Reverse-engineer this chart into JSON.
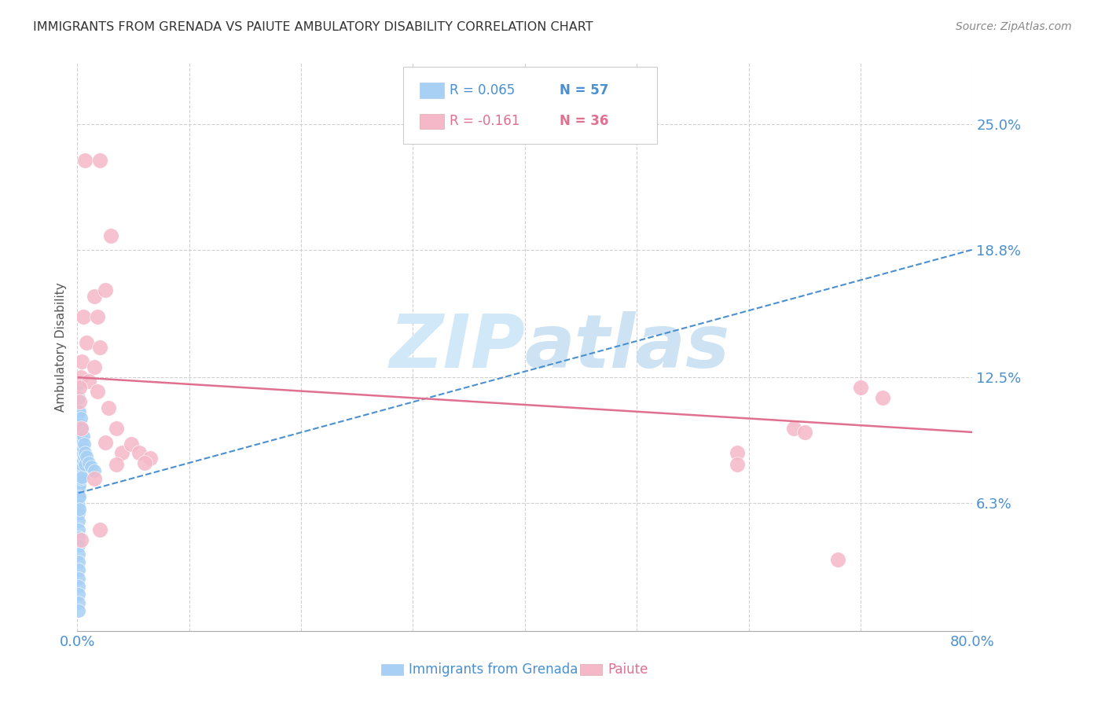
{
  "title": "IMMIGRANTS FROM GRENADA VS PAIUTE AMBULATORY DISABILITY CORRELATION CHART",
  "source": "Source: ZipAtlas.com",
  "xlabel_bottom": [
    "Immigrants from Grenada",
    "Paiute"
  ],
  "ylabel": "Ambulatory Disability",
  "xmin": 0.0,
  "xmax": 0.8,
  "ymin": 0.0,
  "ymax": 0.28,
  "yticks": [
    0.0,
    0.063,
    0.125,
    0.188,
    0.25
  ],
  "ytick_labels": [
    "",
    "6.3%",
    "12.5%",
    "18.8%",
    "25.0%"
  ],
  "xticks": [
    0.0,
    0.1,
    0.2,
    0.3,
    0.4,
    0.5,
    0.6,
    0.7,
    0.8
  ],
  "xtick_labels": [
    "0.0%",
    "",
    "",
    "",
    "",
    "",
    "",
    "",
    "80.0%"
  ],
  "legend_r1": "R = 0.065",
  "legend_n1": "N = 57",
  "legend_r2": "R = -0.161",
  "legend_n2": "N = 36",
  "blue_color": "#a8d0f5",
  "pink_color": "#f5b8c8",
  "trendline_blue_color": "#4a90d0",
  "trendline_pink_color": "#e07090",
  "grid_color": "#d0d0d0",
  "title_color": "#333333",
  "axis_label_color": "#4a90d0",
  "watermark_color": "#d0e8f8",
  "blue_scatter": [
    [
      0.001,
      0.122
    ],
    [
      0.001,
      0.115
    ],
    [
      0.001,
      0.108
    ],
    [
      0.001,
      0.1
    ],
    [
      0.001,
      0.095
    ],
    [
      0.001,
      0.09
    ],
    [
      0.001,
      0.086
    ],
    [
      0.001,
      0.082
    ],
    [
      0.001,
      0.078
    ],
    [
      0.001,
      0.074
    ],
    [
      0.001,
      0.07
    ],
    [
      0.001,
      0.066
    ],
    [
      0.001,
      0.062
    ],
    [
      0.001,
      0.058
    ],
    [
      0.001,
      0.054
    ],
    [
      0.001,
      0.05
    ],
    [
      0.001,
      0.046
    ],
    [
      0.001,
      0.042
    ],
    [
      0.001,
      0.038
    ],
    [
      0.001,
      0.034
    ],
    [
      0.001,
      0.03
    ],
    [
      0.001,
      0.026
    ],
    [
      0.001,
      0.022
    ],
    [
      0.001,
      0.018
    ],
    [
      0.001,
      0.014
    ],
    [
      0.001,
      0.01
    ],
    [
      0.002,
      0.108
    ],
    [
      0.002,
      0.102
    ],
    [
      0.002,
      0.096
    ],
    [
      0.002,
      0.09
    ],
    [
      0.002,
      0.084
    ],
    [
      0.002,
      0.078
    ],
    [
      0.002,
      0.072
    ],
    [
      0.002,
      0.066
    ],
    [
      0.002,
      0.06
    ],
    [
      0.003,
      0.105
    ],
    [
      0.003,
      0.099
    ],
    [
      0.003,
      0.093
    ],
    [
      0.003,
      0.087
    ],
    [
      0.003,
      0.081
    ],
    [
      0.003,
      0.075
    ],
    [
      0.004,
      0.1
    ],
    [
      0.004,
      0.094
    ],
    [
      0.004,
      0.088
    ],
    [
      0.004,
      0.082
    ],
    [
      0.004,
      0.076
    ],
    [
      0.005,
      0.096
    ],
    [
      0.005,
      0.09
    ],
    [
      0.005,
      0.084
    ],
    [
      0.006,
      0.092
    ],
    [
      0.006,
      0.086
    ],
    [
      0.007,
      0.088
    ],
    [
      0.007,
      0.082
    ],
    [
      0.008,
      0.086
    ],
    [
      0.01,
      0.083
    ],
    [
      0.012,
      0.081
    ],
    [
      0.015,
      0.079
    ]
  ],
  "pink_scatter": [
    [
      0.007,
      0.232
    ],
    [
      0.02,
      0.232
    ],
    [
      0.03,
      0.195
    ],
    [
      0.015,
      0.165
    ],
    [
      0.025,
      0.168
    ],
    [
      0.005,
      0.155
    ],
    [
      0.018,
      0.155
    ],
    [
      0.008,
      0.142
    ],
    [
      0.02,
      0.14
    ],
    [
      0.004,
      0.133
    ],
    [
      0.015,
      0.13
    ],
    [
      0.003,
      0.125
    ],
    [
      0.01,
      0.123
    ],
    [
      0.002,
      0.12
    ],
    [
      0.018,
      0.118
    ],
    [
      0.002,
      0.113
    ],
    [
      0.028,
      0.11
    ],
    [
      0.003,
      0.1
    ],
    [
      0.035,
      0.1
    ],
    [
      0.025,
      0.093
    ],
    [
      0.04,
      0.088
    ],
    [
      0.048,
      0.092
    ],
    [
      0.055,
      0.088
    ],
    [
      0.065,
      0.085
    ],
    [
      0.015,
      0.075
    ],
    [
      0.035,
      0.082
    ],
    [
      0.06,
      0.083
    ],
    [
      0.02,
      0.05
    ],
    [
      0.003,
      0.045
    ],
    [
      0.59,
      0.088
    ],
    [
      0.59,
      0.082
    ],
    [
      0.64,
      0.1
    ],
    [
      0.65,
      0.098
    ],
    [
      0.7,
      0.12
    ],
    [
      0.72,
      0.115
    ],
    [
      0.68,
      0.035
    ]
  ],
  "blue_trend_x": [
    0.001,
    0.8
  ],
  "blue_trend_y_start": 0.068,
  "blue_trend_y_end": 0.188,
  "pink_trend_x": [
    0.001,
    0.8
  ],
  "pink_trend_y_start": 0.125,
  "pink_trend_y_end": 0.098
}
